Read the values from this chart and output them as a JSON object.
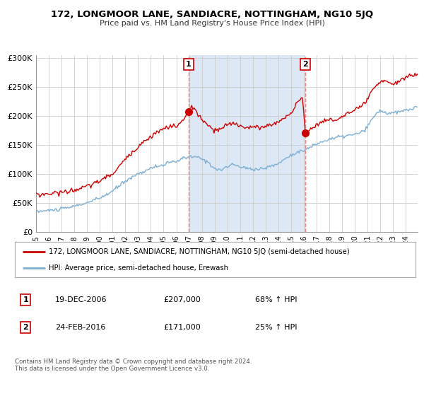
{
  "title": "172, LONGMOOR LANE, SANDIACRE, NOTTINGHAM, NG10 5JQ",
  "subtitle": "Price paid vs. HM Land Registry's House Price Index (HPI)",
  "legend_line1": "172, LONGMOOR LANE, SANDIACRE, NOTTINGHAM, NG10 5JQ (semi-detached house)",
  "legend_line2": "HPI: Average price, semi-detached house, Erewash",
  "transaction1_date": "19-DEC-2006",
  "transaction1_price": "£207,000",
  "transaction1_hpi": "68% ↑ HPI",
  "transaction2_date": "24-FEB-2016",
  "transaction2_price": "£171,000",
  "transaction2_hpi": "25% ↑ HPI",
  "footer": "Contains HM Land Registry data © Crown copyright and database right 2024.\nThis data is licensed under the Open Government Licence v3.0.",
  "price_color": "#cc0000",
  "hpi_color": "#7bafd4",
  "shade_color": "#dce8f5",
  "dashed_color": "#e88080",
  "ylim_min": 0,
  "ylim_max": 305000,
  "yticks": [
    0,
    50000,
    100000,
    150000,
    200000,
    250000,
    300000
  ],
  "ytick_labels": [
    "£0",
    "£50K",
    "£100K",
    "£150K",
    "£200K",
    "£250K",
    "£300K"
  ],
  "grid_color": "#cccccc",
  "background_color": "#ffffff"
}
